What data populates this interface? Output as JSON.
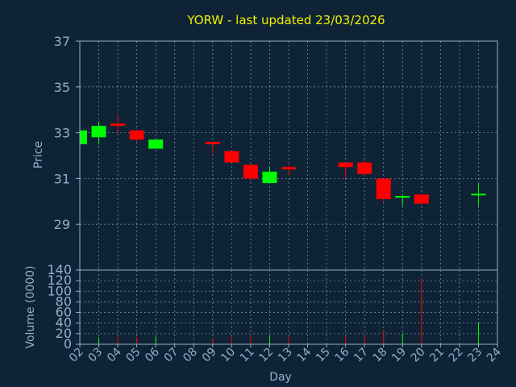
{
  "chart_data": [
    {
      "type": "candlestick",
      "title": "YORW - last updated 23/03/2026",
      "ylabel": "Price",
      "ylim": [
        27,
        37
      ],
      "yticks": [
        29,
        31,
        33,
        35,
        37
      ],
      "grid": true,
      "colors": {
        "up": "#00ff00",
        "down": "#ff0000"
      },
      "candles": [
        {
          "day": "02",
          "x": 2,
          "open": 32.5,
          "high": 33.1,
          "low": 32.5,
          "close": 33.1
        },
        {
          "day": "03",
          "x": 3,
          "open": 32.8,
          "high": 33.5,
          "low": 32.5,
          "close": 33.3
        },
        {
          "day": "04",
          "x": 4,
          "open": 33.4,
          "high": 33.8,
          "low": 33.0,
          "close": 33.3
        },
        {
          "day": "05",
          "x": 5,
          "open": 33.1,
          "high": 33.1,
          "low": 32.6,
          "close": 32.7
        },
        {
          "day": "06",
          "x": 6,
          "open": 32.3,
          "high": 32.7,
          "low": 32.3,
          "close": 32.7
        },
        {
          "day": "09",
          "x": 9,
          "open": 32.6,
          "high": 32.6,
          "low": 32.1,
          "close": 32.5
        },
        {
          "day": "10",
          "x": 10,
          "open": 32.2,
          "high": 32.2,
          "low": 31.7,
          "close": 31.7
        },
        {
          "day": "11",
          "x": 11,
          "open": 31.6,
          "high": 31.6,
          "low": 30.9,
          "close": 31.0
        },
        {
          "day": "12",
          "x": 12,
          "open": 30.8,
          "high": 31.5,
          "low": 30.8,
          "close": 31.3
        },
        {
          "day": "13",
          "x": 13,
          "open": 31.5,
          "high": 31.6,
          "low": 31.1,
          "close": 31.4
        },
        {
          "day": "16",
          "x": 16,
          "open": 31.7,
          "high": 31.7,
          "low": 31.0,
          "close": 31.5
        },
        {
          "day": "17",
          "x": 17,
          "open": 31.7,
          "high": 31.8,
          "low": 31.1,
          "close": 31.2
        },
        {
          "day": "18",
          "x": 18,
          "open": 31.0,
          "high": 31.0,
          "low": 30.0,
          "close": 30.1
        },
        {
          "day": "19",
          "x": 19,
          "open": 30.2,
          "high": 30.3,
          "low": 29.8,
          "close": 30.2
        },
        {
          "day": "20",
          "x": 20,
          "open": 30.3,
          "high": 30.3,
          "low": 29.9,
          "close": 29.9
        },
        {
          "day": "23",
          "x": 23,
          "open": 30.3,
          "high": 30.8,
          "low": 29.8,
          "close": 30.3
        }
      ]
    },
    {
      "type": "bar",
      "ylabel": "Volume (0000)",
      "xlabel": "Day",
      "ylim": [
        0,
        140
      ],
      "yticks": [
        0,
        20,
        40,
        60,
        80,
        100,
        120,
        140
      ],
      "grid": true,
      "x_tick_labels": [
        "02",
        "03",
        "04",
        "05",
        "06",
        "07",
        "08",
        "09",
        "10",
        "11",
        "12",
        "13",
        "14",
        "15",
        "16",
        "17",
        "18",
        "19",
        "20",
        "21",
        "22",
        "23",
        "24"
      ],
      "x_range": [
        2,
        24
      ],
      "bars": [
        {
          "x": 2,
          "value": 8,
          "direction": "up"
        },
        {
          "x": 3,
          "value": 13,
          "direction": "up"
        },
        {
          "x": 4,
          "value": 14,
          "direction": "down"
        },
        {
          "x": 5,
          "value": 13,
          "direction": "down"
        },
        {
          "x": 6,
          "value": 15,
          "direction": "up"
        },
        {
          "x": 9,
          "value": 11,
          "direction": "down"
        },
        {
          "x": 10,
          "value": 16,
          "direction": "down"
        },
        {
          "x": 11,
          "value": 17,
          "direction": "down"
        },
        {
          "x": 12,
          "value": 16,
          "direction": "up"
        },
        {
          "x": 13,
          "value": 15,
          "direction": "down"
        },
        {
          "x": 16,
          "value": 15,
          "direction": "down"
        },
        {
          "x": 17,
          "value": 17,
          "direction": "down"
        },
        {
          "x": 18,
          "value": 25,
          "direction": "down"
        },
        {
          "x": 19,
          "value": 20,
          "direction": "up"
        },
        {
          "x": 20,
          "value": 125,
          "direction": "down"
        },
        {
          "x": 23,
          "value": 42,
          "direction": "up"
        }
      ]
    }
  ]
}
